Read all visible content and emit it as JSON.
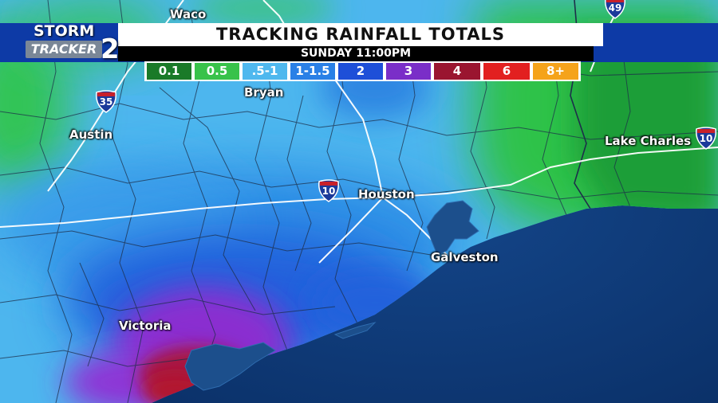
{
  "header": {
    "title": "TRACKING RAINFALL TOTALS",
    "subtitle": "SUNDAY 11:00PM"
  },
  "logo": {
    "line1": "STORM",
    "line2": "TRACKER",
    "number": "2"
  },
  "legend": {
    "items": [
      {
        "label": "0.1",
        "color": "#1a7a28"
      },
      {
        "label": "0.5",
        "color": "#38c24a"
      },
      {
        "label": ".5-1",
        "color": "#4fb8ee"
      },
      {
        "label": "1-1.5",
        "color": "#2a80e6"
      },
      {
        "label": "2",
        "color": "#1e4fd8"
      },
      {
        "label": "3",
        "color": "#7a2ec8"
      },
      {
        "label": "4",
        "color": "#9a1530"
      },
      {
        "label": "6",
        "color": "#e22020"
      },
      {
        "label": "8+",
        "color": "#f5a31a"
      }
    ]
  },
  "cities": [
    {
      "name": "Waco"
    },
    {
      "name": "Bryan"
    },
    {
      "name": "Austin"
    },
    {
      "name": "Houston"
    },
    {
      "name": "Galveston"
    },
    {
      "name": "Lake Charles"
    },
    {
      "name": "Victoria"
    }
  ],
  "highways": [
    {
      "number": "35",
      "icon": "interstate-shield-icon"
    },
    {
      "number": "10",
      "icon": "interstate-shield-icon"
    },
    {
      "number": "10",
      "icon": "interstate-shield-icon"
    },
    {
      "number": "49",
      "icon": "interstate-shield-icon"
    }
  ],
  "colors": {
    "gulf": "#0b3673",
    "banner": "#0d3aa6"
  }
}
